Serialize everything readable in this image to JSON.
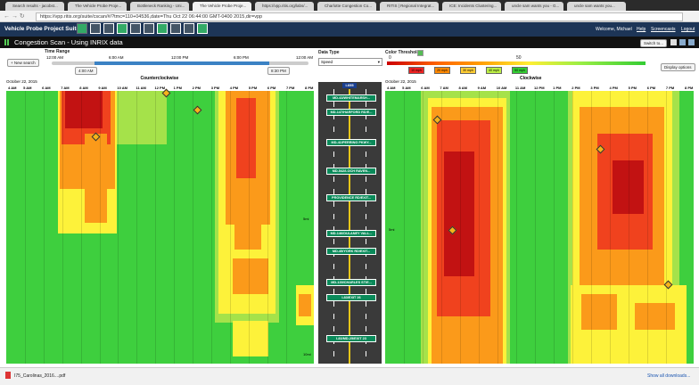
{
  "browser": {
    "tabs": [
      "Search results - jacobst...",
      "The Vehicle Probe Proje...",
      "Bottleneck Ranking - Uni...",
      "The Vehicle Probe Proje...",
      "https://vpp.ritis.org/labs/...",
      "Charlotte Congestion Co...",
      "RITIS | Regional Integrat...",
      "ICE: Incidents Clustering...",
      "uncle sam wants you - G...",
      "uncle sam wants you..."
    ],
    "url": "https://vpp.ritis.org/suite/cscan/#/?tmc=110+04536,date=Thu Oct 22 06:44:00 GMT-0400 2015,dir=vpp",
    "download_file": "I75_Carolinas_2016....pdf",
    "show_all": "Show all downloads..."
  },
  "header": {
    "suite": "Vehicle Probe Project Suite",
    "welcome": "Welcome, Michael",
    "links": [
      "Help",
      "Screencasts",
      "Logout"
    ]
  },
  "toolbar": {
    "title": "Congestion Scan - Using INRIX data",
    "switch": "Switch to..."
  },
  "controls": {
    "new_search": "New search",
    "time_range": {
      "label": "Time Range",
      "ticks": [
        "12:00 AM",
        "6:00 AM",
        "12:00 PM",
        "6:00 PM",
        "12:00 AM"
      ],
      "start": "4:00 AM",
      "end": "8:30 PM"
    },
    "data_type": {
      "label": "Data Type",
      "value": "Speed"
    },
    "color_thresholds": {
      "label": "Color Thresholds",
      "scale": [
        0,
        50
      ],
      "boxes": [
        "10 mph",
        "20 mph",
        "30 mph",
        "40 mph",
        "50 mph"
      ]
    },
    "display_options": "Display options"
  },
  "panels": [
    {
      "direction": "Counterclockwise",
      "date": "October 22, 2015",
      "hours": [
        "4 AM",
        "5 AM",
        "6 AM",
        "7 AM",
        "8 AM",
        "9 AM",
        "10 AM",
        "11 AM",
        "12 PM",
        "1 PM",
        "2 PM",
        "3 PM",
        "4 PM",
        "5 PM",
        "6 PM",
        "7 PM",
        "8 PM"
      ],
      "distances": [
        "5mi",
        "10mi"
      ]
    },
    {
      "direction": "Clockwise",
      "date": "October 22, 2015",
      "hours": [
        "4 AM",
        "5 AM",
        "6 AM",
        "7 AM",
        "8 AM",
        "9 AM",
        "10 AM",
        "11 AM",
        "12 PM",
        "1 PM",
        "2 PM",
        "3 PM",
        "4 PM",
        "5 PM",
        "6 PM",
        "7 PM",
        "8 PM"
      ],
      "distances": [
        "5mi"
      ]
    }
  ],
  "road": {
    "name": "I-695",
    "exits": [
      "MD-43/WHITEMARSH...",
      "MD-147/HARFORD RD/E...",
      "MD-41/PERRING PKWY...",
      "MD-542/LOCH RAVEN...",
      "PROVIDENCE RD/EXIT...",
      "MD-146/DULANEY VALL...",
      "MD-45/YORK RD/EXIT...",
      "MD-139/CHARLES ST/E...",
      "I-83/EXIT 26",
      "I-83/MD-25/EXIT 23"
    ]
  }
}
